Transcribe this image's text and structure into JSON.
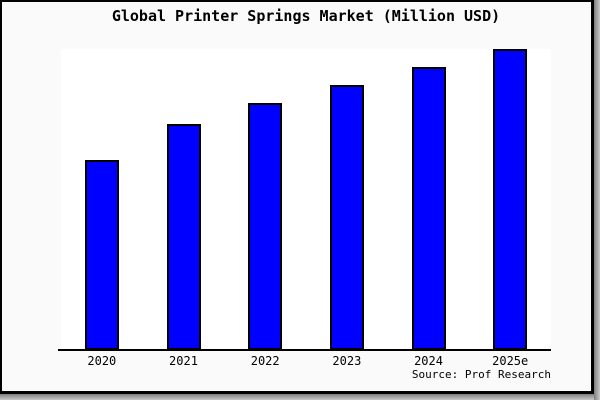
{
  "chart_data": {
    "type": "bar",
    "title": "Global Printer Springs Market (Million USD)",
    "categories": [
      "2020",
      "2021",
      "2022",
      "2023",
      "2024",
      "2025e"
    ],
    "values": [
      63,
      75,
      82,
      88,
      94,
      100
    ],
    "xlabel": "",
    "ylabel": "",
    "ylim": [
      0,
      100
    ],
    "grid": false,
    "legend": null,
    "note": "Chart shows no y-axis scale or value labels; values are estimated from bar pixel heights normalized so the 2025e bar = 100.",
    "colors": {
      "bar_fill": "#0000ff",
      "bar_edge": "#000000",
      "plot_bg": "#ffffff",
      "figure_bg": "#fafafa",
      "axis": "#000000"
    }
  },
  "source_label": "Source: Prof Research"
}
